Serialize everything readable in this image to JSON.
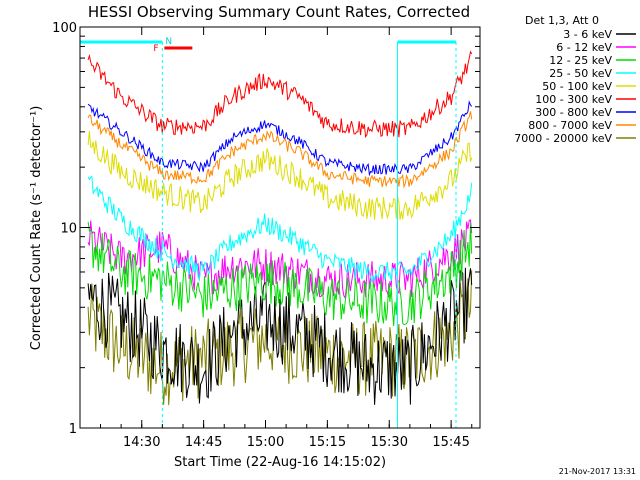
{
  "chart_data": {
    "type": "line",
    "title": "HESSI Observing Summary Count Rates, Corrected",
    "xlabel": "Start Time (22-Aug-16 14:15:02)",
    "ylabel": "Corrected Count Rate (s⁻¹ detector⁻¹)",
    "yscale": "log",
    "ylim": [
      1,
      100
    ],
    "xlim": [
      "14:15:02",
      "15:52"
    ],
    "x_ticks": [
      "14:30",
      "14:45",
      "15:00",
      "15:15",
      "15:30",
      "15:45"
    ],
    "y_ticks": [
      "1",
      "10",
      "100"
    ],
    "legend_title": "Det 1,3, Att 0",
    "legend_position": "right",
    "markers": {
      "flag_n": "N",
      "flag_f": "F",
      "night_end": "14:35",
      "night_start": "15:32"
    },
    "x_samples": [
      "14:17",
      "14:25",
      "14:35",
      "14:45",
      "14:52",
      "15:00",
      "15:08",
      "15:15",
      "15:25",
      "15:35",
      "15:45",
      "15:50"
    ],
    "series": [
      {
        "name": "3 - 6 keV",
        "color": "#000000",
        "values": [
          4.5,
          3.5,
          2.5,
          2.0,
          3.0,
          3.5,
          3.0,
          2.5,
          2.0,
          2.0,
          3.5,
          4.5
        ]
      },
      {
        "name": "6 - 12 keV",
        "color": "#ff00ff",
        "values": [
          9.0,
          7.0,
          8.0,
          5.5,
          6.5,
          6.5,
          6.0,
          5.5,
          5.5,
          5.5,
          7.5,
          9.0
        ]
      },
      {
        "name": "12 - 25 keV",
        "color": "#00dd00",
        "values": [
          8.5,
          6.0,
          5.5,
          4.5,
          5.0,
          5.5,
          5.0,
          4.5,
          4.2,
          4.2,
          6.0,
          8.5
        ]
      },
      {
        "name": "25 - 50 keV",
        "color": "#00ffff",
        "values": [
          17.0,
          11.0,
          7.5,
          6.0,
          8.5,
          10.5,
          8.5,
          6.8,
          6.0,
          6.0,
          9.0,
          15.0
        ]
      },
      {
        "name": "50 - 100 keV",
        "color": "#dddd00",
        "values": [
          27.0,
          19.0,
          15.0,
          13.0,
          18.0,
          22.0,
          18.0,
          14.0,
          12.5,
          12.5,
          17.0,
          25.0
        ]
      },
      {
        "name": "100 - 300 keV",
        "color": "#ff0000",
        "values": [
          68.0,
          45.0,
          32.0,
          32.0,
          45.0,
          55.0,
          45.0,
          33.0,
          31.0,
          31.0,
          45.0,
          70.0
        ]
      },
      {
        "name": "300 - 800 keV",
        "color": "#0000ff",
        "values": [
          40.0,
          30.0,
          21.0,
          20.0,
          28.0,
          33.0,
          27.0,
          21.0,
          19.5,
          19.5,
          28.0,
          42.0
        ]
      },
      {
        "name": "800 - 7000 keV",
        "color": "#ff8800",
        "values": [
          35.0,
          26.0,
          18.5,
          17.5,
          24.0,
          29.0,
          24.0,
          18.5,
          17.0,
          17.0,
          24.0,
          37.0
        ]
      },
      {
        "name": "7000 - 20000 keV",
        "color": "#808000",
        "values": [
          3.5,
          2.5,
          2.0,
          2.2,
          2.5,
          2.8,
          2.5,
          2.3,
          2.2,
          2.2,
          3.0,
          4.0
        ]
      }
    ]
  },
  "footer": {
    "timestamp": "21-Nov-2017 13:31"
  }
}
